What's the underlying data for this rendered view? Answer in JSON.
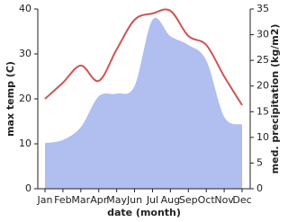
{
  "chart_data": {
    "type": "line-area",
    "categories": [
      "Jan",
      "Feb",
      "Mar",
      "Apr",
      "May",
      "Jun",
      "Jul",
      "Aug",
      "Sep",
      "Oct",
      "Nov",
      "Dec"
    ],
    "x_label": "date (month)",
    "y_label": "max temp (C)",
    "y2_label": "med. precipitation (kg/m2)",
    "ylim": [
      0,
      40
    ],
    "yticks": [
      0,
      10,
      20,
      30,
      40
    ],
    "y2lim": [
      0,
      35
    ],
    "y2ticks": [
      0,
      5,
      10,
      15,
      20,
      25,
      30,
      35
    ],
    "series": [
      {
        "name": "max temp",
        "color": "#cd5555",
        "kind": "line",
        "axis": "y",
        "values": [
          20,
          23.6,
          27.4,
          24,
          31,
          37.6,
          39,
          39.6,
          34,
          32,
          25,
          18.6
        ]
      },
      {
        "name": "med. precipitation",
        "color": "#b0bef0",
        "kind": "area",
        "axis": "y2",
        "values": [
          8.9,
          9.5,
          12,
          18,
          18.5,
          20,
          32.9,
          29.7,
          28,
          25,
          14,
          12.5
        ]
      }
    ]
  }
}
